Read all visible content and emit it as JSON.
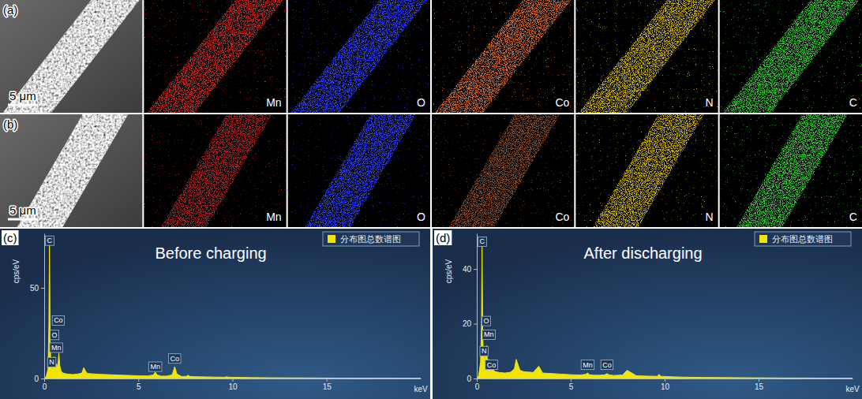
{
  "figure": {
    "rows": [
      {
        "label": "(a)",
        "scale_bar": "5 μm",
        "maps": [
          {
            "element": "Mn",
            "color": "#c42a20"
          },
          {
            "element": "O",
            "color": "#2b3cf0"
          },
          {
            "element": "Co",
            "color": "#d2692a"
          },
          {
            "element": "N",
            "color": "#c9b000"
          },
          {
            "element": "C",
            "color": "#33c433"
          }
        ]
      },
      {
        "label": "(b)",
        "scale_bar": "5 μm",
        "maps": [
          {
            "element": "Mn",
            "color": "#a82420"
          },
          {
            "element": "O",
            "color": "#2b3cf0"
          },
          {
            "element": "Co",
            "color": "#8a4a22"
          },
          {
            "element": "N",
            "color": "#c9b000"
          },
          {
            "element": "C",
            "color": "#33c433"
          }
        ]
      }
    ]
  },
  "chart_data": [
    {
      "type": "area",
      "panel_label": "(c)",
      "title": "Before charging",
      "xlabel": "keV",
      "ylabel": "cps/eV",
      "x": [
        0,
        0.1,
        0.2,
        0.25,
        0.28,
        0.32,
        0.36,
        0.39,
        0.43,
        0.48,
        0.52,
        0.57,
        0.62,
        0.64,
        0.68,
        0.74,
        0.78,
        0.83,
        0.9,
        1.0,
        1.2,
        1.5,
        1.8,
        2.0,
        2.1,
        2.2,
        2.3,
        2.5,
        3.0,
        3.3,
        3.5,
        4.0,
        4.5,
        5.0,
        5.5,
        5.8,
        5.9,
        6.0,
        6.2,
        6.5,
        6.8,
        6.93,
        7.05,
        7.3,
        7.55,
        7.65,
        7.75,
        8.0,
        8.5,
        9.0,
        9.6,
        9.7,
        9.8,
        10.5,
        11,
        12,
        13,
        14,
        15,
        16,
        17,
        18,
        19,
        20
      ],
      "series": [
        {
          "name": "分布图总数谱图",
          "color": "#f2e600",
          "values": [
            0,
            1,
            5,
            30,
            78,
            20,
            6,
            7,
            5,
            8,
            12,
            6,
            7,
            8,
            6,
            9,
            14,
            7,
            4,
            3,
            2.5,
            2.2,
            2.5,
            3,
            6,
            4,
            2.8,
            2.6,
            2.3,
            2.2,
            2.1,
            1.9,
            1.7,
            1.5,
            1.4,
            2,
            3.5,
            2,
            1.3,
            1.3,
            2,
            6.5,
            2.5,
            1.1,
            1.2,
            1.8,
            1.1,
            1,
            0.9,
            0.8,
            0.7,
            1.0,
            0.7,
            0.6,
            0.5,
            0.4,
            0.35,
            0.3,
            0.25,
            0.2,
            0.18,
            0.15,
            0.12,
            0.1
          ]
        }
      ],
      "xlim": [
        0,
        20
      ],
      "xticks": [
        0,
        5,
        10,
        15
      ],
      "ylim": [
        0,
        80
      ],
      "yticks": [
        0,
        50
      ],
      "legend": "upper right",
      "annotations": [
        {
          "text": "C",
          "x": 0.28,
          "y": 76
        },
        {
          "text": "Co",
          "x": 0.75,
          "y": 32
        },
        {
          "text": "O",
          "x": 0.55,
          "y": 24
        },
        {
          "text": "Mn",
          "x": 0.64,
          "y": 17
        },
        {
          "text": "N",
          "x": 0.4,
          "y": 9
        },
        {
          "text": "Mn",
          "x": 5.9,
          "y": 6.5
        },
        {
          "text": "Co",
          "x": 6.93,
          "y": 11
        }
      ]
    },
    {
      "type": "area",
      "panel_label": "(d)",
      "title": "After discharging",
      "xlabel": "keV",
      "ylabel": "cps/eV",
      "x": [
        0,
        0.1,
        0.2,
        0.25,
        0.28,
        0.32,
        0.36,
        0.39,
        0.43,
        0.48,
        0.52,
        0.57,
        0.62,
        0.64,
        0.68,
        0.74,
        0.78,
        0.83,
        0.9,
        1.0,
        1.2,
        1.5,
        1.8,
        2.0,
        2.1,
        2.2,
        2.3,
        2.5,
        3.0,
        3.3,
        3.5,
        4.0,
        4.5,
        5.0,
        5.5,
        5.8,
        5.9,
        6.0,
        6.2,
        6.5,
        6.8,
        6.93,
        7.05,
        7.3,
        7.55,
        7.65,
        7.75,
        8.0,
        8.5,
        9.0,
        9.6,
        9.7,
        9.8,
        10.5,
        11,
        12,
        13,
        14,
        15,
        16,
        17,
        18,
        19,
        20
      ],
      "series": [
        {
          "name": "分布图总数谱图",
          "color": "#f2e600",
          "values": [
            0,
            1,
            6,
            20,
            50,
            15,
            8,
            9,
            6,
            10,
            12,
            6,
            7,
            6,
            5,
            4,
            5,
            4,
            3,
            2.5,
            2.2,
            2,
            2.3,
            3.5,
            7,
            5,
            3,
            2.5,
            2.2,
            4.5,
            2,
            1.8,
            1.6,
            1.4,
            1.3,
            1.5,
            2,
            1.4,
            1.2,
            1.2,
            1.3,
            1.8,
            1.3,
            1.1,
            1.2,
            1.3,
            1.2,
            3,
            1,
            0.9,
            0.8,
            1.5,
            0.8,
            0.6,
            0.5,
            0.4,
            0.35,
            0.3,
            0.25,
            0.2,
            0.18,
            0.15,
            0.12,
            0.1
          ]
        }
      ],
      "xlim": [
        0,
        20
      ],
      "xticks": [
        0,
        5,
        10,
        15
      ],
      "ylim": [
        0,
        53
      ],
      "yticks": [
        0,
        20,
        40
      ],
      "legend": "upper right",
      "annotations": [
        {
          "text": "C",
          "x": 0.28,
          "y": 50
        },
        {
          "text": "O",
          "x": 0.5,
          "y": 21
        },
        {
          "text": "Mn",
          "x": 0.64,
          "y": 16
        },
        {
          "text": "N",
          "x": 0.39,
          "y": 10
        },
        {
          "text": "Co",
          "x": 0.78,
          "y": 5
        },
        {
          "text": "Mn",
          "x": 5.9,
          "y": 5
        },
        {
          "text": "Co",
          "x": 6.93,
          "y": 5
        }
      ]
    }
  ]
}
